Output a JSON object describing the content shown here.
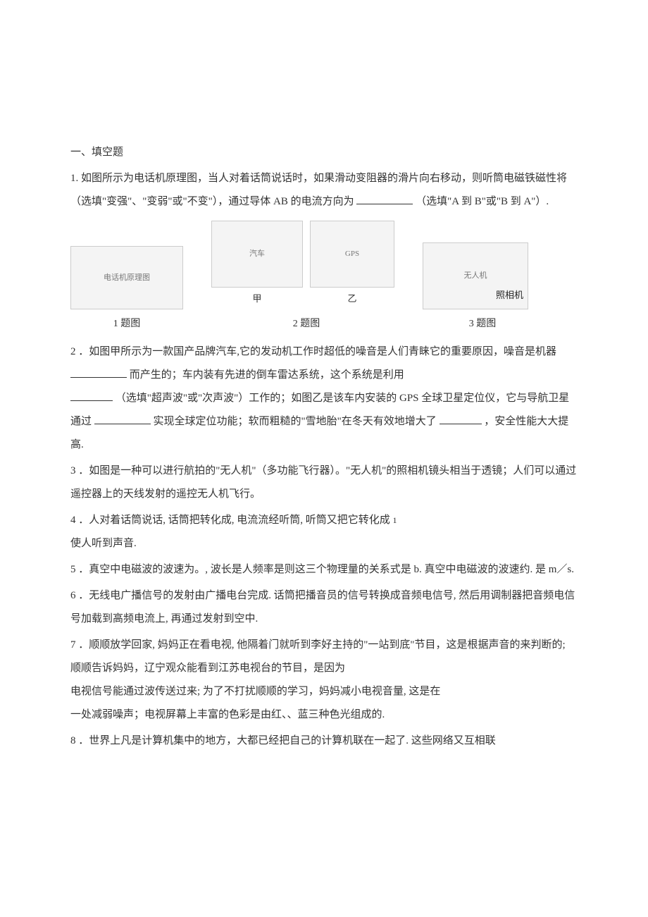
{
  "section": {
    "title": "一、填空题"
  },
  "q1": {
    "text_a": "1. 如图所示为电话机原理图，当人对着话筒说话时，如果滑动变阻器的滑片向右移动，则听筒电磁铁磁性将（选填\"变强\"、\"变弱\"或\"不变\"），通过导体 AB 的电流方向为 ",
    "text_b": "（选填\"A 到 B\"或\"B 到 A\"）."
  },
  "images": {
    "img1_alt": "电话机原理图",
    "img2a_alt": "汽车",
    "img2a_sub": "甲",
    "img2b_alt": "GPS",
    "img2b_sub": "乙",
    "img3_alt": "无人机",
    "img3_label": "照相机",
    "cap1": "1 题图",
    "cap2": "2 题图",
    "cap3": "3 题图"
  },
  "q2": {
    "text_a": "2 ．如图甲所示为一款国产品牌汽车,它的发动机工作时超低的噪音是人们青睐它的重要原因，噪音是机器 ",
    "text_b": "而产生的；车内装有先进的倒车雷达系统，这个系统是利用 ",
    "text_c": "（选填\"超声波\"或\"次声波\"）工作的；如图乙是该车内安装的 GPS 全球卫星定位仪，它与导航卫星通过 ",
    "text_d": "实现全球定位功能；软而粗糙的\"雪地胎\"在冬天有效地增大了 ",
    "text_e": "，安全性能大大提高."
  },
  "q3": {
    "text": "3 ．如图是一种可以进行航拍的\"无人机\"（多功能飞行器）。\"无人机\"的照相机镜头相当于透镜；人们可以通过遥控器上的天线发射的遥控无人机飞行。"
  },
  "q4": {
    "text_a": "4 ．人对着话筒说话, 话筒把转化成, 电流流经听筒, 听筒又把它转化成 ",
    "sub": "1",
    "text_b": "使人听到声音."
  },
  "q5": {
    "text": "5 ．真空中电磁波的波速为。, 波长是人频率是则这三个物理量的关系式是 b. 真空中电磁波的波速约. 是 m／s."
  },
  "q6": {
    "text": "6 ．无线电广播信号的发射由广播电台完成. 话筒把播音员的信号转换成音频电信号, 然后用调制器把音频电信号加载到高频电流上, 再通过发射到空中."
  },
  "q7": {
    "text_a": "7 ．顺顺放学回家, 妈妈正在看电视, 他隔着门就听到李好主持的\"一站到底\"节目，这是根据声音的来判断的; 顺顺告诉妈妈，辽宁观众能看到江苏电视台的节目，是因为",
    "text_b": "电视信号能通过波传送过来; 为了不打扰顺顺的学习，妈妈减小电视音量, 这是在",
    "text_c": "一处减弱噪声；电视屏幕上丰富的色彩是由红、、蓝三种色光组成的."
  },
  "q8": {
    "text": "8 ．世界上凡是计算机集中的地方，大都已经把自己的计算机联在一起了. 这些网络又互相联"
  }
}
